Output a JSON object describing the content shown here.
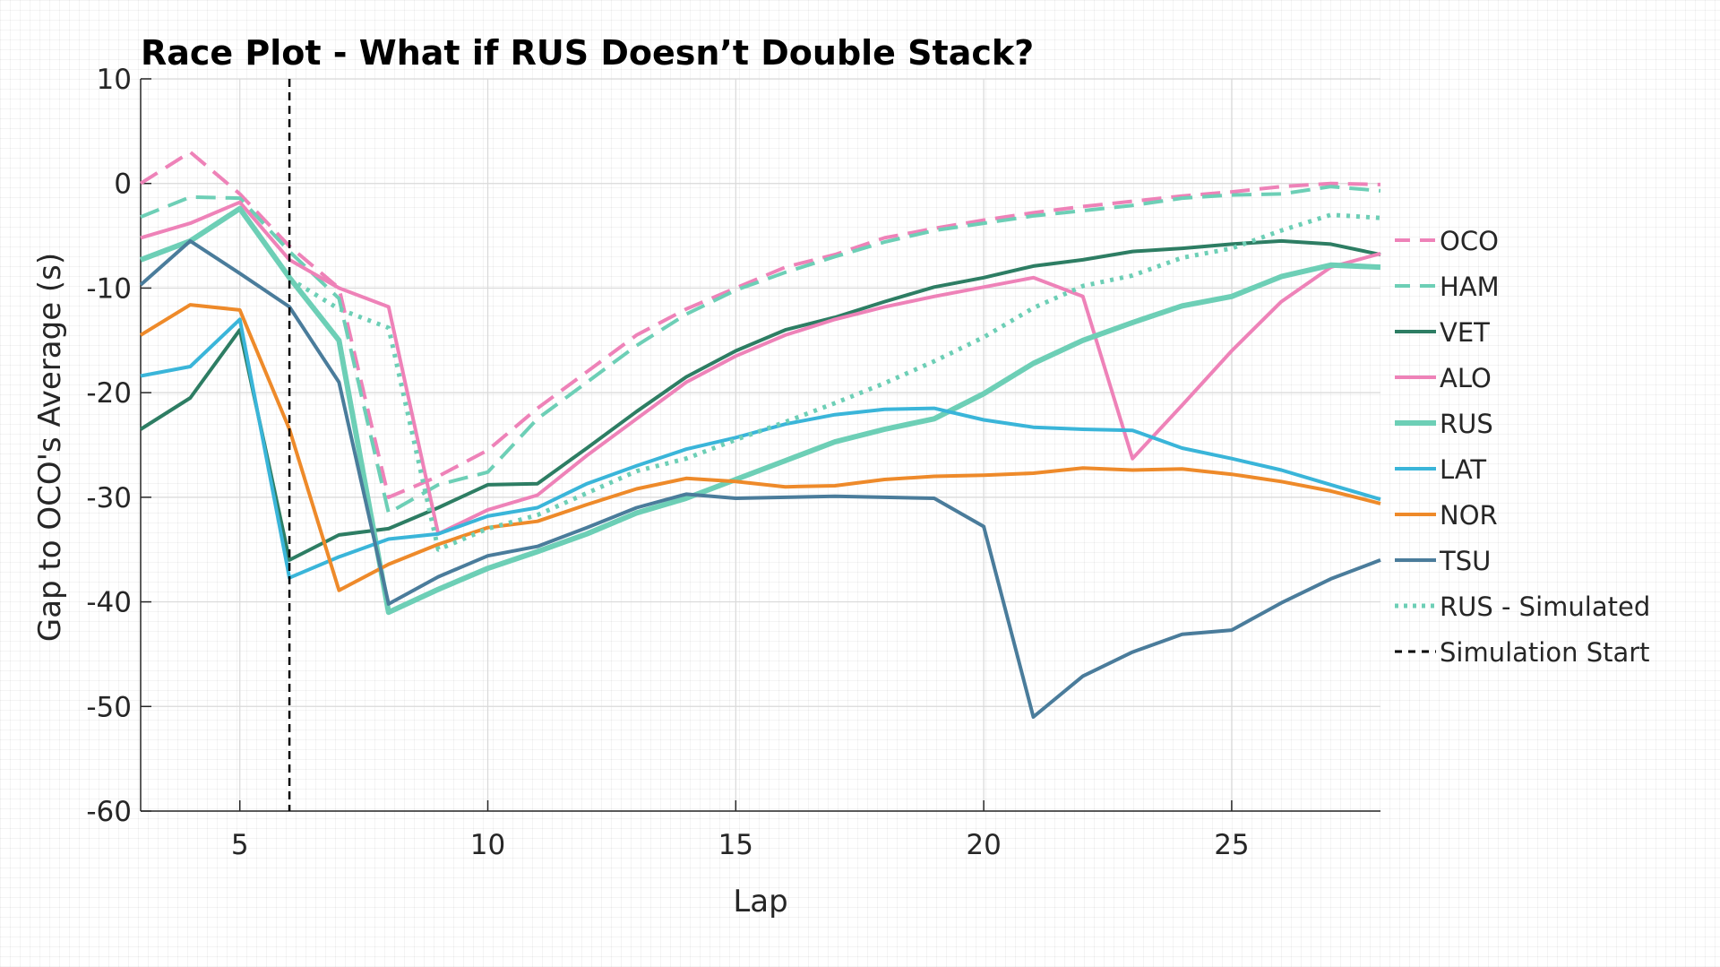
{
  "chart_data": {
    "type": "line",
    "title": "Race Plot - What if RUS Doesn’t Double Stack?",
    "xlabel": "Lap",
    "ylabel": "Gap to OCO's Average (s)",
    "xlim": [
      3,
      28
    ],
    "ylim": [
      -60,
      10
    ],
    "xticks": [
      5,
      10,
      15,
      20,
      25
    ],
    "yticks": [
      10,
      0,
      -10,
      -20,
      -30,
      -40,
      -50,
      -60
    ],
    "grid": true,
    "legend_position": "right",
    "series": [
      {
        "name": "OCO",
        "color": "#ee82b8",
        "style": "dashed",
        "width": 4,
        "x": [
          3,
          4,
          5,
          6,
          7,
          8,
          9,
          10,
          11,
          12,
          13,
          14,
          15,
          16,
          17,
          18,
          19,
          20,
          21,
          22,
          23,
          24,
          25,
          26,
          27,
          28
        ],
        "values": [
          0,
          3,
          -1,
          -6,
          -10,
          -30,
          -28,
          -25.5,
          -21.5,
          -18,
          -14.5,
          -12,
          -10,
          -8,
          -6.8,
          -5.2,
          -4.3,
          -3.5,
          -2.8,
          -2.2,
          -1.7,
          -1.2,
          -0.8,
          -0.3,
          0,
          -0.1
        ]
      },
      {
        "name": "HAM",
        "color": "#6dcfb6",
        "style": "dashed",
        "width": 4,
        "x": [
          3,
          4,
          5,
          6,
          7,
          8,
          9,
          10,
          11,
          12,
          13,
          14,
          15,
          16,
          17,
          18,
          19,
          20,
          21,
          22,
          23,
          24,
          25,
          26,
          27,
          28
        ],
        "values": [
          -3.2,
          -1.3,
          -1.4,
          -6.5,
          -11,
          -31.5,
          -28.8,
          -27.6,
          -22.5,
          -19,
          -15.5,
          -12.5,
          -10.2,
          -8.5,
          -7,
          -5.6,
          -4.5,
          -3.8,
          -3.1,
          -2.6,
          -2.1,
          -1.4,
          -1.1,
          -1,
          -0.3,
          -0.7
        ]
      },
      {
        "name": "VET",
        "color": "#2d7d63",
        "style": "solid",
        "width": 4,
        "x": [
          3,
          4,
          5,
          6,
          7,
          8,
          9,
          10,
          11,
          12,
          13,
          14,
          15,
          16,
          17,
          18,
          19,
          20,
          21,
          22,
          23,
          24,
          25,
          26,
          27,
          28
        ],
        "values": [
          -23.5,
          -20.5,
          -14,
          -36,
          -33.6,
          -33,
          -31,
          -28.8,
          -28.7,
          -25.3,
          -21.8,
          -18.5,
          -16,
          -14,
          -12.8,
          -11.3,
          -9.9,
          -9,
          -7.9,
          -7.3,
          -6.5,
          -6.2,
          -5.8,
          -5.5,
          -5.8,
          -6.8
        ]
      },
      {
        "name": "ALO",
        "color": "#ee82b8",
        "style": "solid",
        "width": 4,
        "x": [
          3,
          4,
          5,
          6,
          7,
          8,
          9,
          10,
          11,
          12,
          13,
          14,
          15,
          16,
          17,
          18,
          19,
          20,
          21,
          22,
          23,
          24,
          25,
          26,
          27,
          28
        ],
        "values": [
          -5.2,
          -3.8,
          -1.8,
          -7.3,
          -10,
          -11.8,
          -33.5,
          -31.2,
          -29.8,
          -26,
          -22.5,
          -19,
          -16.5,
          -14.5,
          -13,
          -11.8,
          -10.8,
          -9.9,
          -9,
          -10.8,
          -26.3,
          -21.2,
          -16,
          -11.3,
          -8,
          -6.7
        ]
      },
      {
        "name": "RUS",
        "color": "#6dcfb6",
        "style": "solid",
        "width": 6,
        "x": [
          3,
          4,
          5,
          6,
          7,
          8,
          9,
          10,
          11,
          12,
          13,
          14,
          15,
          16,
          17,
          18,
          19,
          20,
          21,
          22,
          23,
          24,
          25,
          26,
          27,
          28
        ],
        "values": [
          -7.3,
          -5.5,
          -2.4,
          -9,
          -15,
          -41,
          -38.8,
          -36.8,
          -35.2,
          -33.5,
          -31.5,
          -30.1,
          -28.3,
          -26.5,
          -24.7,
          -23.5,
          -22.5,
          -20.1,
          -17.2,
          -15,
          -13.3,
          -11.7,
          -10.8,
          -8.9,
          -7.8,
          -8
        ]
      },
      {
        "name": "LAT",
        "color": "#3ab5d9",
        "style": "solid",
        "width": 4,
        "x": [
          3,
          4,
          5,
          6,
          7,
          8,
          9,
          10,
          11,
          12,
          13,
          14,
          15,
          16,
          17,
          18,
          19,
          20,
          21,
          22,
          23,
          24,
          25,
          26,
          27,
          28
        ],
        "values": [
          -18.4,
          -17.5,
          -13,
          -37.7,
          -35.7,
          -34,
          -33.5,
          -31.8,
          -31,
          -28.7,
          -27,
          -25.4,
          -24.3,
          -23,
          -22.1,
          -21.6,
          -21.5,
          -22.6,
          -23.3,
          -23.5,
          -23.6,
          -25.3,
          -26.3,
          -27.4,
          -28.8,
          -30.2
        ]
      },
      {
        "name": "NOR",
        "color": "#ee8a2a",
        "style": "solid",
        "width": 4,
        "x": [
          3,
          4,
          5,
          6,
          7,
          8,
          9,
          10,
          11,
          12,
          13,
          14,
          15,
          16,
          17,
          18,
          19,
          20,
          21,
          22,
          23,
          24,
          25,
          26,
          27,
          28
        ],
        "values": [
          -14.5,
          -11.6,
          -12.1,
          -23.5,
          -38.9,
          -36.4,
          -34.5,
          -32.9,
          -32.3,
          -30.7,
          -29.2,
          -28.2,
          -28.5,
          -29,
          -28.9,
          -28.3,
          -28,
          -27.9,
          -27.7,
          -27.2,
          -27.4,
          -27.3,
          -27.8,
          -28.5,
          -29.4,
          -30.6
        ]
      },
      {
        "name": "TSU",
        "color": "#4a7c9b",
        "style": "solid",
        "width": 4,
        "x": [
          3,
          4,
          5,
          6,
          7,
          8,
          9,
          10,
          11,
          12,
          13,
          14,
          15,
          16,
          17,
          18,
          19,
          20,
          21,
          22,
          23,
          24,
          25,
          26,
          27,
          28
        ],
        "values": [
          -9.7,
          -5.5,
          -8.6,
          -11.8,
          -19,
          -40.2,
          -37.6,
          -35.6,
          -34.7,
          -32.9,
          -31,
          -29.7,
          -30.1,
          -30,
          -29.9,
          -30,
          -30.1,
          -32.8,
          -51,
          -47.1,
          -44.8,
          -43.1,
          -42.7,
          -40.1,
          -37.8,
          -36
        ]
      },
      {
        "name": "RUS - Simulated",
        "color": "#6dcfb6",
        "style": "dotted",
        "width": 5,
        "x": [
          6,
          7,
          8,
          9,
          10,
          11,
          12,
          13,
          14,
          15,
          16,
          17,
          18,
          19,
          20,
          21,
          22,
          23,
          24,
          25,
          26,
          27,
          28
        ],
        "values": [
          -9.1,
          -12,
          -13.8,
          -35,
          -33,
          -31.7,
          -29.6,
          -27.5,
          -26.3,
          -24.5,
          -22.8,
          -21,
          -19.1,
          -17,
          -14.7,
          -11.9,
          -9.8,
          -8.8,
          -7.1,
          -6.2,
          -4.5,
          -3,
          -3.3
        ]
      }
    ],
    "vlines": [
      {
        "name": "Simulation Start",
        "x": 6,
        "color": "#000000",
        "style": "dashed"
      }
    ]
  }
}
